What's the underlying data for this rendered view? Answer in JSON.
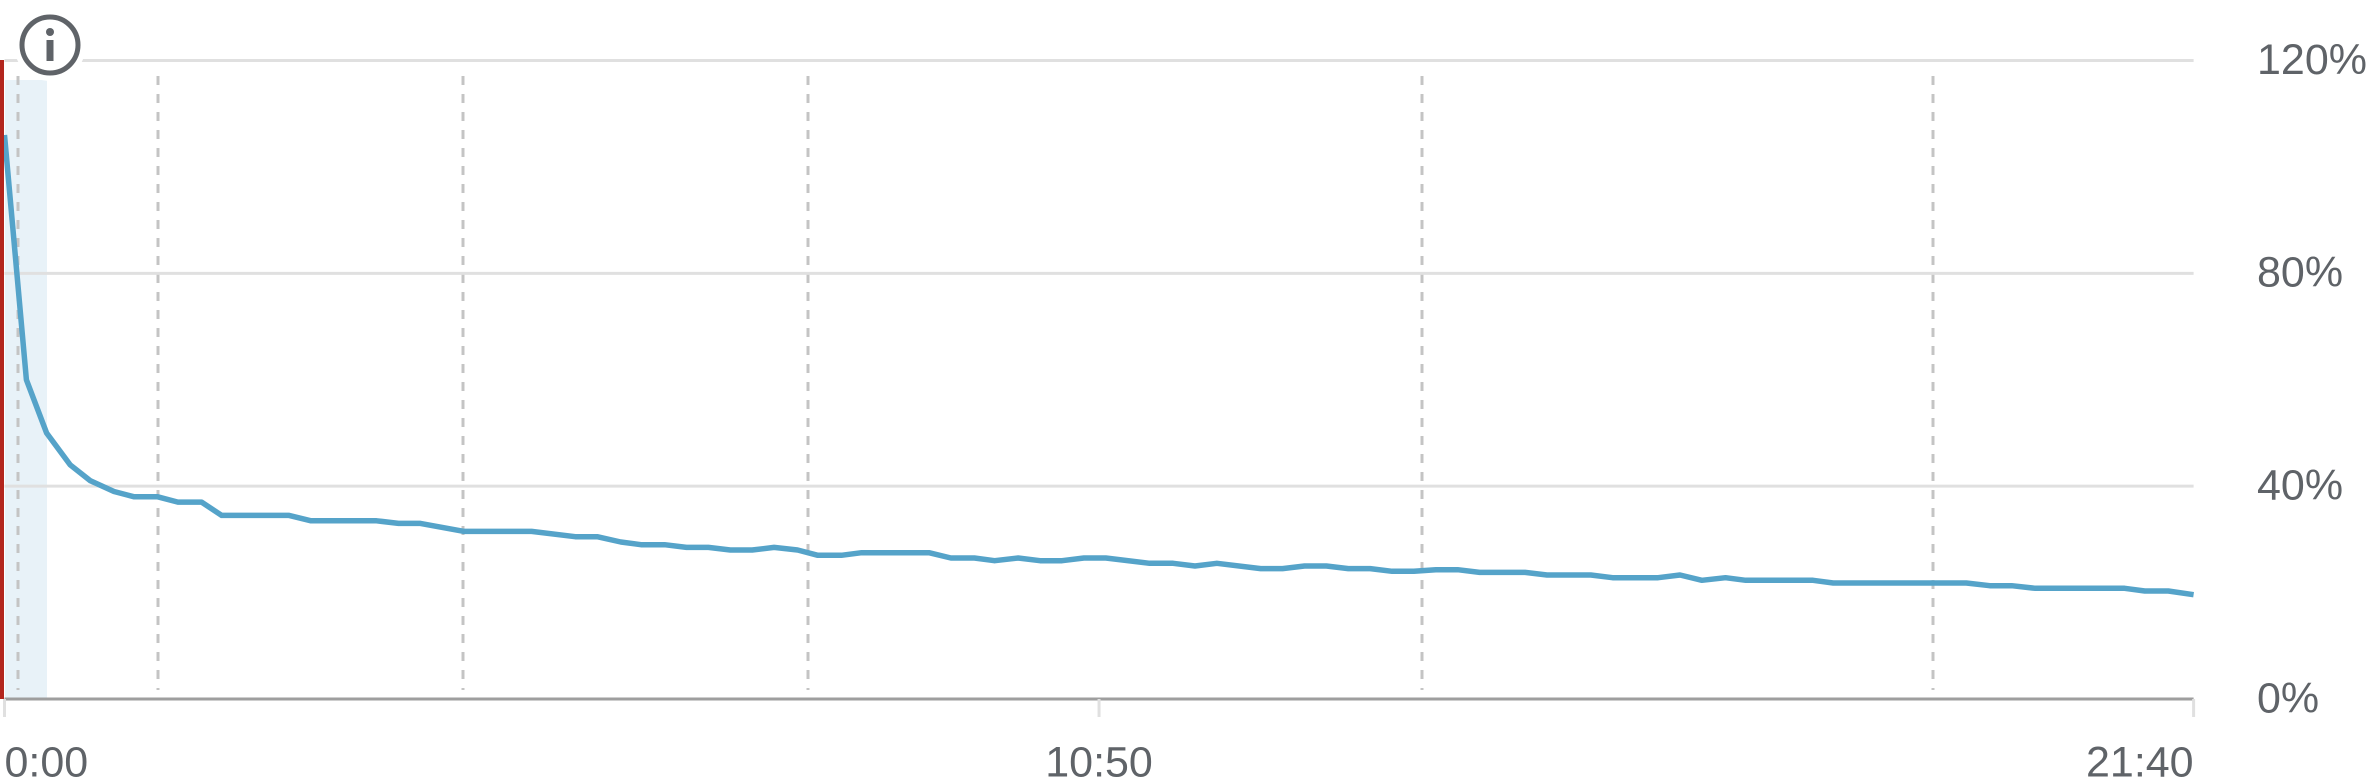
{
  "chart_data": {
    "type": "line",
    "color": "#55a3c9",
    "x": [
      0,
      13,
      25,
      39,
      51,
      65,
      77,
      91,
      103,
      117,
      129,
      169,
      182,
      221,
      234,
      247,
      273,
      313,
      339,
      352,
      366,
      378,
      392,
      405,
      418,
      431,
      444,
      457,
      471,
      483,
      497,
      509,
      549,
      562,
      576,
      588,
      602,
      615,
      628,
      641,
      654,
      680,
      694,
      707,
      720,
      746,
      759,
      772,
      785,
      798,
      811,
      824,
      837,
      850,
      863,
      876,
      903,
      916,
      942,
      955,
      982,
      995,
      1008,
      1022,
      1034,
      1074,
      1086,
      1165,
      1179,
      1192,
      1206,
      1259,
      1271,
      1285,
      1300
    ],
    "values": [
      106,
      60,
      50,
      44,
      41,
      39,
      38,
      38,
      37,
      37,
      34.5,
      34.5,
      33.5,
      33.5,
      33,
      33,
      31.5,
      31.5,
      30.5,
      30.5,
      29.5,
      29,
      29,
      28.5,
      28.5,
      28,
      28,
      28.5,
      28,
      27,
      27,
      27.5,
      27.5,
      26.5,
      26.5,
      26,
      26.5,
      26,
      26,
      26.5,
      26.5,
      25.5,
      25.5,
      25,
      25.5,
      24.5,
      24.5,
      25,
      25,
      24.5,
      24.5,
      24,
      24,
      24.3,
      24.3,
      23.8,
      23.8,
      23.3,
      23.3,
      22.8,
      22.8,
      23.3,
      22.3,
      22.8,
      22.3,
      22.3,
      21.8,
      21.8,
      21.3,
      21.3,
      20.8,
      20.8,
      20.3,
      20.3,
      19.6
    ],
    "xlim": [
      0,
      1300
    ],
    "xticks": [
      {
        "value": 0,
        "label": "0:00"
      },
      {
        "value": 650,
        "label": "10:50"
      },
      {
        "value": 1300,
        "label": "21:40"
      }
    ],
    "ylim": [
      0,
      120
    ],
    "yticks": [
      {
        "value": 0,
        "label": "0%"
      },
      {
        "value": 40,
        "label": "40%"
      },
      {
        "value": 80,
        "label": "80%"
      },
      {
        "value": 120,
        "label": "120%"
      }
    ],
    "grid": true
  }
}
